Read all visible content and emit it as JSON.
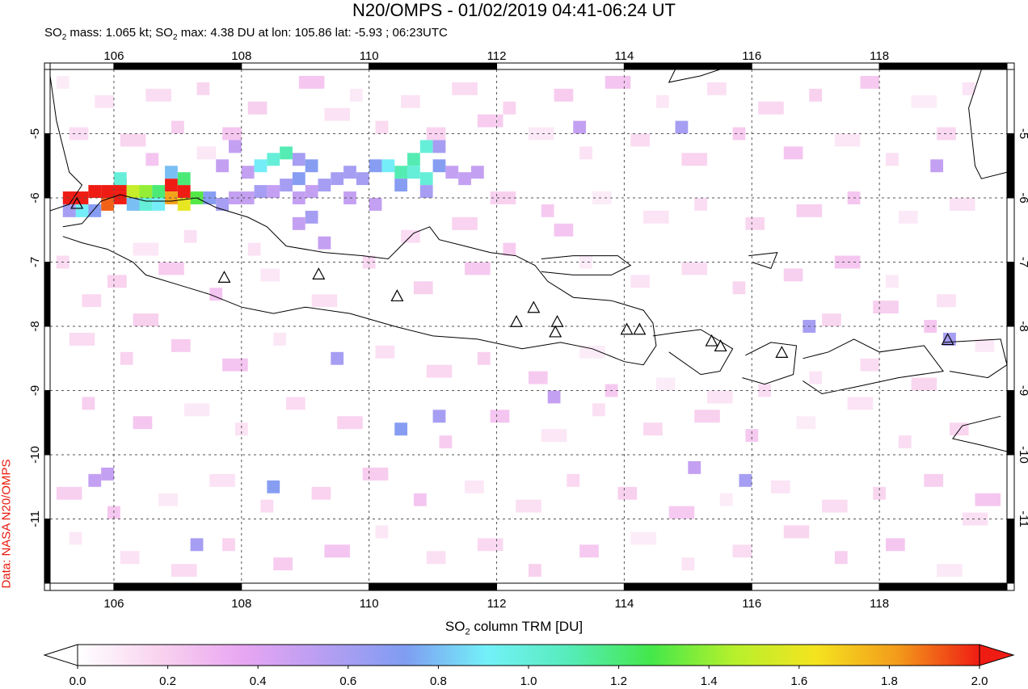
{
  "title": "N20/OMPS - 01/02/2019 04:41-06:24 UT",
  "subtitle": {
    "so2_mass_label": "SO",
    "so2_mass_text": " mass: 1.065 kt; SO",
    "so2_max_text": " max: 4.38 DU at lon: 105.86 lat: -5.93 ; 06:23UTC"
  },
  "credit": "Data: NASA N20/OMPS",
  "colorbar": {
    "label_prefix": "SO",
    "label_suffix": " column TRM [DU]",
    "ticks": [
      "0.0",
      "0.2",
      "0.4",
      "0.6",
      "0.8",
      "1.0",
      "1.2",
      "1.4",
      "1.6",
      "1.8",
      "2.0"
    ],
    "range": [
      0.0,
      2.0
    ],
    "colors": [
      "#ffffff",
      "#f9d3ef",
      "#e9a6f2",
      "#b79ef2",
      "#7f9df2",
      "#73f1f8",
      "#56ecba",
      "#44e84a",
      "#b6f02c",
      "#f4e41f",
      "#f39b1b",
      "#ef1c14"
    ]
  },
  "map": {
    "lon_range": [
      105.0,
      120.0
    ],
    "lat_range": [
      -12.0,
      -4.0
    ],
    "x_ticks": [
      "106",
      "108",
      "110",
      "112",
      "114",
      "116",
      "118"
    ],
    "x_tick_values": [
      106,
      108,
      110,
      112,
      114,
      116,
      118
    ],
    "y_ticks": [
      "-5",
      "-6",
      "-7",
      "-8",
      "-9",
      "-10",
      "-11"
    ],
    "y_tick_values": [
      -5,
      -6,
      -7,
      -8,
      -9,
      -10,
      -11
    ],
    "grid": true,
    "volcanoes": [
      [
        105.42,
        -6.1
      ],
      [
        107.73,
        -7.25
      ],
      [
        109.21,
        -7.2
      ],
      [
        110.44,
        -7.54
      ],
      [
        112.31,
        -7.94
      ],
      [
        112.58,
        -7.72
      ],
      [
        112.95,
        -7.94
      ],
      [
        112.92,
        -8.1
      ],
      [
        114.04,
        -8.06
      ],
      [
        114.24,
        -8.06
      ],
      [
        115.37,
        -8.24
      ],
      [
        115.51,
        -8.32
      ],
      [
        116.47,
        -8.42
      ],
      [
        119.07,
        -8.22
      ]
    ],
    "so2_cells": [
      [
        105.3,
        -6.0,
        2.0
      ],
      [
        105.5,
        -6.0,
        2.0
      ],
      [
        105.7,
        -5.9,
        2.0
      ],
      [
        105.9,
        -5.9,
        2.0
      ],
      [
        106.1,
        -6.0,
        2.0
      ],
      [
        105.9,
        -6.1,
        1.9
      ],
      [
        106.1,
        -5.8,
        2.0
      ],
      [
        106.3,
        -5.9,
        1.5
      ],
      [
        106.5,
        -5.9,
        1.4
      ],
      [
        106.7,
        -5.9,
        1.2
      ],
      [
        106.9,
        -5.8,
        2.0
      ],
      [
        107.1,
        -5.9,
        2.0
      ],
      [
        107.1,
        -6.1,
        1.6
      ],
      [
        107.3,
        -6.0,
        1.3
      ],
      [
        106.9,
        -6.0,
        1.8
      ],
      [
        107.1,
        -5.7,
        1.2
      ],
      [
        106.7,
        -6.1,
        0.9
      ],
      [
        106.5,
        -6.1,
        1.0
      ],
      [
        106.3,
        -6.1,
        0.8
      ],
      [
        105.5,
        -6.2,
        0.9
      ],
      [
        105.3,
        -6.2,
        0.6
      ],
      [
        105.7,
        -6.2,
        0.7
      ],
      [
        106.1,
        -5.7,
        1.0
      ],
      [
        106.9,
        -5.6,
        0.8
      ],
      [
        107.5,
        -6.0,
        0.7
      ],
      [
        107.7,
        -6.1,
        0.6
      ],
      [
        107.9,
        -6.0,
        0.5
      ],
      [
        108.1,
        -6.0,
        0.5
      ],
      [
        108.3,
        -5.5,
        0.9
      ],
      [
        108.5,
        -5.4,
        1.0
      ],
      [
        108.7,
        -5.3,
        1.1
      ],
      [
        108.9,
        -5.4,
        0.6
      ],
      [
        109.1,
        -5.5,
        0.7
      ],
      [
        108.5,
        -5.9,
        0.5
      ],
      [
        108.7,
        -5.8,
        0.6
      ],
      [
        108.9,
        -5.7,
        0.7
      ],
      [
        109.1,
        -5.9,
        0.5
      ],
      [
        109.3,
        -5.8,
        0.6
      ],
      [
        109.5,
        -5.7,
        0.6
      ],
      [
        109.7,
        -5.6,
        0.6
      ],
      [
        109.9,
        -5.7,
        0.6
      ],
      [
        110.1,
        -5.5,
        0.7
      ],
      [
        110.3,
        -5.5,
        0.9
      ],
      [
        110.5,
        -5.6,
        1.1
      ],
      [
        110.7,
        -5.6,
        1.0
      ],
      [
        110.9,
        -5.7,
        1.0
      ],
      [
        111.1,
        -5.5,
        0.7
      ],
      [
        110.7,
        -5.4,
        1.1
      ],
      [
        110.9,
        -5.2,
        1.0
      ],
      [
        111.1,
        -5.2,
        0.6
      ],
      [
        110.5,
        -5.8,
        0.7
      ],
      [
        110.9,
        -5.9,
        0.6
      ],
      [
        111.3,
        -5.6,
        0.5
      ],
      [
        111.5,
        -5.7,
        0.5
      ],
      [
        111.7,
        -5.6,
        0.5
      ],
      [
        108.9,
        -6.0,
        0.5
      ],
      [
        108.3,
        -5.9,
        0.6
      ],
      [
        108.1,
        -5.6,
        0.5
      ],
      [
        107.9,
        -5.2,
        0.5
      ],
      [
        107.7,
        -5.5,
        0.5
      ],
      [
        109.7,
        -6.0,
        0.5
      ],
      [
        110.1,
        -6.1,
        0.5
      ],
      [
        109.1,
        -6.3,
        0.6
      ],
      [
        108.9,
        -6.4,
        0.5
      ],
      [
        109.3,
        -6.7,
        0.5
      ],
      [
        109.5,
        -8.5,
        0.6
      ],
      [
        111.1,
        -9.4,
        0.6
      ],
      [
        110.5,
        -9.6,
        0.7
      ],
      [
        114.9,
        -4.9,
        0.6
      ],
      [
        116.9,
        -8.0,
        0.6
      ],
      [
        115.9,
        -10.4,
        0.6
      ],
      [
        119.1,
        -8.2,
        0.6
      ],
      [
        105.9,
        -10.3,
        0.5
      ],
      [
        105.7,
        -10.4,
        0.5
      ],
      [
        108.5,
        -10.5,
        0.7
      ],
      [
        107.3,
        -11.4,
        0.6
      ],
      [
        113.3,
        -4.9,
        0.5
      ],
      [
        115.1,
        -10.2,
        0.5
      ],
      [
        118.9,
        -5.5,
        0.5
      ],
      [
        112.9,
        -9.1,
        0.5
      ]
    ],
    "faint_cells": [
      [
        105.2,
        -4.2
      ],
      [
        105.8,
        -4.5
      ],
      [
        106.6,
        -4.4
      ],
      [
        107.4,
        -4.3
      ],
      [
        108.2,
        -4.6
      ],
      [
        109.0,
        -4.2
      ],
      [
        109.8,
        -4.4
      ],
      [
        110.6,
        -4.5
      ],
      [
        111.4,
        -4.3
      ],
      [
        112.2,
        -4.6
      ],
      [
        113.0,
        -4.4
      ],
      [
        113.8,
        -4.2
      ],
      [
        114.6,
        -4.5
      ],
      [
        115.4,
        -4.3
      ],
      [
        116.2,
        -4.6
      ],
      [
        117.0,
        -4.4
      ],
      [
        117.8,
        -4.2
      ],
      [
        118.6,
        -4.5
      ],
      [
        119.4,
        -4.3
      ],
      [
        105.4,
        -5.0
      ],
      [
        106.2,
        -5.1
      ],
      [
        107.0,
        -4.9
      ],
      [
        107.8,
        -5.0
      ],
      [
        112.6,
        -5.0
      ],
      [
        113.4,
        -5.3
      ],
      [
        114.2,
        -5.1
      ],
      [
        115.0,
        -5.4
      ],
      [
        115.8,
        -5.0
      ],
      [
        116.6,
        -5.3
      ],
      [
        117.4,
        -5.1
      ],
      [
        118.2,
        -5.4
      ],
      [
        119.0,
        -5.0
      ],
      [
        112.0,
        -6.0
      ],
      [
        112.8,
        -6.2
      ],
      [
        113.6,
        -6.0
      ],
      [
        114.4,
        -6.3
      ],
      [
        115.2,
        -6.1
      ],
      [
        116.0,
        -6.4
      ],
      [
        116.8,
        -6.2
      ],
      [
        117.6,
        -6.0
      ],
      [
        118.4,
        -6.3
      ],
      [
        119.2,
        -6.1
      ],
      [
        105.2,
        -7.0
      ],
      [
        106.0,
        -7.3
      ],
      [
        106.8,
        -7.1
      ],
      [
        107.6,
        -7.5
      ],
      [
        108.4,
        -7.2
      ],
      [
        109.2,
        -7.6
      ],
      [
        110.0,
        -7.0
      ],
      [
        110.8,
        -7.4
      ],
      [
        111.6,
        -7.1
      ],
      [
        113.4,
        -7.0
      ],
      [
        114.2,
        -7.3
      ],
      [
        115.0,
        -7.1
      ],
      [
        115.8,
        -7.4
      ],
      [
        116.6,
        -7.2
      ],
      [
        117.4,
        -7.0
      ],
      [
        118.2,
        -7.3
      ],
      [
        119.0,
        -7.6
      ],
      [
        105.4,
        -8.2
      ],
      [
        106.2,
        -8.5
      ],
      [
        107.0,
        -8.3
      ],
      [
        107.8,
        -8.6
      ],
      [
        108.6,
        -8.2
      ],
      [
        110.2,
        -8.4
      ],
      [
        111.0,
        -8.7
      ],
      [
        111.8,
        -8.5
      ],
      [
        112.6,
        -8.8
      ],
      [
        113.4,
        -8.4
      ],
      [
        117.0,
        -8.8
      ],
      [
        117.8,
        -8.6
      ],
      [
        118.6,
        -8.9
      ],
      [
        105.6,
        -9.2
      ],
      [
        106.4,
        -9.5
      ],
      [
        107.2,
        -9.3
      ],
      [
        108.0,
        -9.6
      ],
      [
        108.8,
        -9.2
      ],
      [
        109.6,
        -9.5
      ],
      [
        111.2,
        -9.8
      ],
      [
        112.0,
        -9.4
      ],
      [
        112.8,
        -9.7
      ],
      [
        113.6,
        -9.3
      ],
      [
        114.4,
        -9.6
      ],
      [
        115.2,
        -9.4
      ],
      [
        116.0,
        -9.7
      ],
      [
        116.8,
        -9.5
      ],
      [
        117.6,
        -9.2
      ],
      [
        118.4,
        -9.8
      ],
      [
        119.2,
        -9.6
      ],
      [
        105.2,
        -10.6
      ],
      [
        106.0,
        -10.9
      ],
      [
        106.8,
        -10.7
      ],
      [
        107.6,
        -10.4
      ],
      [
        108.4,
        -10.8
      ],
      [
        109.2,
        -10.6
      ],
      [
        110.0,
        -10.3
      ],
      [
        110.8,
        -10.7
      ],
      [
        111.6,
        -10.5
      ],
      [
        112.4,
        -10.8
      ],
      [
        113.2,
        -10.4
      ],
      [
        114.0,
        -10.6
      ],
      [
        114.8,
        -10.9
      ],
      [
        115.6,
        -10.7
      ],
      [
        116.4,
        -10.5
      ],
      [
        117.2,
        -10.8
      ],
      [
        118.0,
        -10.6
      ],
      [
        118.8,
        -10.4
      ],
      [
        119.6,
        -10.7
      ],
      [
        105.4,
        -11.3
      ],
      [
        106.2,
        -11.6
      ],
      [
        107.0,
        -11.8
      ],
      [
        107.8,
        -11.4
      ],
      [
        108.6,
        -11.7
      ],
      [
        109.4,
        -11.5
      ],
      [
        110.2,
        -11.2
      ],
      [
        111.0,
        -11.6
      ],
      [
        111.8,
        -11.4
      ],
      [
        112.6,
        -11.8
      ],
      [
        113.4,
        -11.5
      ],
      [
        114.2,
        -11.3
      ],
      [
        115.0,
        -11.7
      ],
      [
        115.8,
        -11.5
      ],
      [
        116.6,
        -11.2
      ],
      [
        117.4,
        -11.6
      ],
      [
        118.2,
        -11.4
      ],
      [
        119.0,
        -11.8
      ],
      [
        108.2,
        -6.8
      ],
      [
        110.6,
        -6.6
      ],
      [
        111.4,
        -6.4
      ],
      [
        112.2,
        -6.8
      ],
      [
        113.0,
        -6.5
      ],
      [
        106.4,
        -6.8
      ],
      [
        107.2,
        -6.6
      ],
      [
        105.6,
        -7.6
      ],
      [
        106.4,
        -7.9
      ],
      [
        113.8,
        -9.0
      ],
      [
        114.6,
        -8.9
      ],
      [
        115.4,
        -9.1
      ],
      [
        116.2,
        -9.0
      ],
      [
        117.2,
        -7.9
      ],
      [
        118.0,
        -7.7
      ],
      [
        118.8,
        -8.0
      ],
      [
        119.6,
        -8.3
      ],
      [
        109.4,
        -4.7
      ],
      [
        110.2,
        -4.9
      ],
      [
        111.0,
        -5.0
      ],
      [
        111.8,
        -4.8
      ],
      [
        106.6,
        -5.4
      ],
      [
        107.4,
        -5.3
      ],
      [
        119.4,
        -11.0
      ]
    ],
    "coastlines": [
      [
        [
          105.2,
          -6.45
        ],
        [
          105.5,
          -6.4
        ],
        [
          105.8,
          -6.05
        ],
        [
          106.1,
          -5.95
        ],
        [
          106.5,
          -6.05
        ],
        [
          106.9,
          -6.05
        ],
        [
          107.3,
          -6.0
        ],
        [
          107.6,
          -6.15
        ],
        [
          108.1,
          -6.3
        ],
        [
          108.4,
          -6.45
        ],
        [
          108.7,
          -6.75
        ],
        [
          109.3,
          -6.85
        ],
        [
          109.9,
          -6.9
        ],
        [
          110.3,
          -6.95
        ],
        [
          110.7,
          -6.55
        ],
        [
          110.95,
          -6.45
        ],
        [
          111.1,
          -6.65
        ],
        [
          111.5,
          -6.75
        ],
        [
          111.9,
          -6.85
        ],
        [
          112.3,
          -6.9
        ],
        [
          112.6,
          -7.05
        ],
        [
          112.8,
          -7.3
        ],
        [
          113.2,
          -7.55
        ],
        [
          113.8,
          -7.6
        ],
        [
          114.3,
          -7.75
        ],
        [
          114.45,
          -7.95
        ],
        [
          114.5,
          -8.3
        ],
        [
          114.3,
          -8.6
        ],
        [
          114.0,
          -8.55
        ],
        [
          113.5,
          -8.35
        ],
        [
          113.0,
          -8.25
        ],
        [
          112.4,
          -8.35
        ],
        [
          111.7,
          -8.2
        ],
        [
          111.0,
          -8.15
        ],
        [
          110.4,
          -8.0
        ],
        [
          109.7,
          -7.8
        ],
        [
          109.0,
          -7.7
        ],
        [
          108.5,
          -7.8
        ],
        [
          108.0,
          -7.7
        ],
        [
          107.5,
          -7.5
        ],
        [
          107.0,
          -7.35
        ],
        [
          106.5,
          -7.2
        ],
        [
          106.3,
          -7.0
        ],
        [
          105.9,
          -6.8
        ],
        [
          105.5,
          -6.7
        ],
        [
          105.2,
          -6.6
        ]
      ],
      [
        [
          112.7,
          -6.95
        ],
        [
          113.2,
          -6.9
        ],
        [
          113.9,
          -6.9
        ],
        [
          114.1,
          -7.05
        ],
        [
          113.8,
          -7.2
        ],
        [
          113.2,
          -7.2
        ],
        [
          112.7,
          -7.15
        ]
      ],
      [
        [
          114.45,
          -8.15
        ],
        [
          114.8,
          -8.1
        ],
        [
          115.2,
          -8.05
        ],
        [
          115.7,
          -8.35
        ],
        [
          115.5,
          -8.7
        ],
        [
          115.2,
          -8.75
        ],
        [
          114.7,
          -8.4
        ]
      ],
      [
        [
          115.9,
          -8.45
        ],
        [
          116.3,
          -8.25
        ],
        [
          116.7,
          -8.3
        ],
        [
          116.65,
          -8.75
        ],
        [
          116.2,
          -8.9
        ],
        [
          115.85,
          -8.8
        ]
      ],
      [
        [
          116.8,
          -8.5
        ],
        [
          117.2,
          -8.4
        ],
        [
          117.6,
          -8.2
        ],
        [
          118.0,
          -8.4
        ],
        [
          118.7,
          -8.3
        ],
        [
          119.0,
          -8.7
        ],
        [
          118.3,
          -8.8
        ],
        [
          117.6,
          -8.95
        ],
        [
          117.1,
          -9.05
        ],
        [
          116.8,
          -8.85
        ]
      ],
      [
        [
          119.0,
          -8.25
        ],
        [
          119.9,
          -8.2
        ],
        [
          120.0,
          -8.6
        ],
        [
          119.7,
          -8.8
        ],
        [
          119.1,
          -8.7
        ]
      ],
      [
        [
          119.9,
          -9.4
        ],
        [
          119.3,
          -9.55
        ],
        [
          119.15,
          -9.75
        ],
        [
          119.6,
          -9.85
        ],
        [
          120.0,
          -9.95
        ]
      ],
      [
        [
          105.0,
          -4.1
        ],
        [
          105.1,
          -4.8
        ],
        [
          105.3,
          -5.6
        ],
        [
          105.5,
          -5.8
        ],
        [
          105.3,
          -6.1
        ],
        [
          105.0,
          -6.2
        ]
      ],
      [
        [
          119.6,
          -4.0
        ],
        [
          119.4,
          -4.6
        ],
        [
          119.5,
          -5.5
        ],
        [
          119.6,
          -5.7
        ],
        [
          120.0,
          -5.6
        ]
      ],
      [
        [
          114.8,
          -4.0
        ],
        [
          114.7,
          -4.2
        ],
        [
          115.2,
          -4.1
        ],
        [
          115.5,
          -4.0
        ]
      ],
      [
        [
          115.95,
          -6.9
        ],
        [
          116.4,
          -6.85
        ],
        [
          116.3,
          -7.1
        ],
        [
          116.0,
          -7.0
        ]
      ]
    ]
  }
}
